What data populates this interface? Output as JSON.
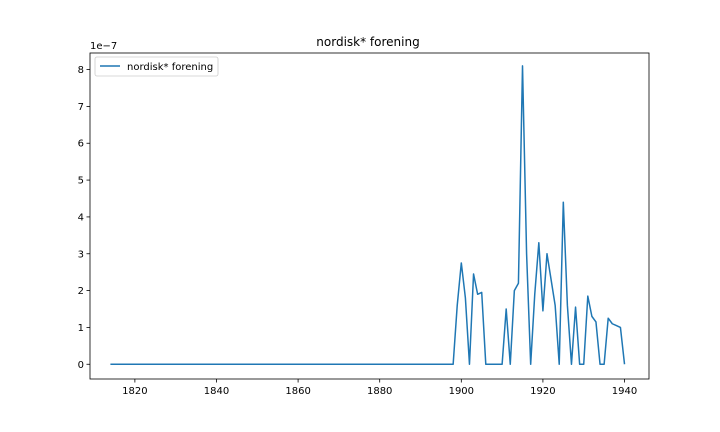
{
  "chart_data": {
    "type": "line",
    "title": "nordisk* forening",
    "xlabel": "",
    "ylabel": "",
    "y_offset_label": "1e−7",
    "xlim": [
      1809,
      1946
    ],
    "ylim": [
      -0.4,
      8.45
    ],
    "x_ticks": [
      1820,
      1840,
      1860,
      1880,
      1900,
      1920,
      1940
    ],
    "y_ticks": [
      0,
      1,
      2,
      3,
      4,
      5,
      6,
      7,
      8
    ],
    "grid": false,
    "legend_position": "upper-left",
    "color": "#1f77b4",
    "series": [
      {
        "name": "nordisk* forening",
        "x": [
          1814,
          1815,
          1816,
          1817,
          1818,
          1819,
          1820,
          1821,
          1822,
          1823,
          1824,
          1825,
          1826,
          1827,
          1828,
          1829,
          1830,
          1831,
          1832,
          1833,
          1834,
          1835,
          1836,
          1837,
          1838,
          1839,
          1840,
          1841,
          1842,
          1843,
          1844,
          1845,
          1846,
          1847,
          1848,
          1849,
          1850,
          1851,
          1852,
          1853,
          1854,
          1855,
          1856,
          1857,
          1858,
          1859,
          1860,
          1861,
          1862,
          1863,
          1864,
          1865,
          1866,
          1867,
          1868,
          1869,
          1870,
          1871,
          1872,
          1873,
          1874,
          1875,
          1876,
          1877,
          1878,
          1879,
          1880,
          1881,
          1882,
          1883,
          1884,
          1885,
          1886,
          1887,
          1888,
          1889,
          1890,
          1891,
          1892,
          1893,
          1894,
          1895,
          1896,
          1897,
          1898,
          1899,
          1900,
          1901,
          1902,
          1903,
          1904,
          1905,
          1906,
          1907,
          1908,
          1909,
          1910,
          1911,
          1912,
          1913,
          1914,
          1915,
          1916,
          1917,
          1918,
          1919,
          1920,
          1921,
          1922,
          1923,
          1924,
          1925,
          1926,
          1927,
          1928,
          1929,
          1930,
          1931,
          1932,
          1933,
          1934,
          1935,
          1936,
          1937,
          1938,
          1939,
          1940
        ],
        "values": [
          0,
          0,
          0,
          0,
          0,
          0,
          0,
          0,
          0,
          0,
          0,
          0,
          0,
          0,
          0,
          0,
          0,
          0,
          0,
          0,
          0,
          0,
          0,
          0,
          0,
          0,
          0,
          0,
          0,
          0,
          0,
          0,
          0,
          0,
          0,
          0,
          0,
          0,
          0,
          0,
          0,
          0,
          0,
          0,
          0,
          0,
          0,
          0,
          0,
          0,
          0,
          0,
          0,
          0,
          0,
          0,
          0,
          0,
          0,
          0,
          0,
          0,
          0,
          0,
          0,
          0,
          0,
          0,
          0,
          0,
          0,
          0,
          0,
          0,
          0,
          0,
          0,
          0,
          0,
          0,
          0,
          0,
          0,
          0,
          0,
          1.6,
          2.75,
          1.8,
          0,
          2.45,
          1.9,
          1.95,
          0,
          0,
          0,
          0,
          0,
          1.5,
          0,
          2.0,
          2.2,
          8.1,
          3.0,
          0,
          1.9,
          3.3,
          1.45,
          3.0,
          2.3,
          1.6,
          0,
          4.4,
          1.6,
          0,
          1.55,
          0,
          0,
          1.85,
          1.3,
          1.15,
          0,
          0,
          1.25,
          1.1,
          1.05,
          1.0,
          0
        ]
      }
    ]
  }
}
